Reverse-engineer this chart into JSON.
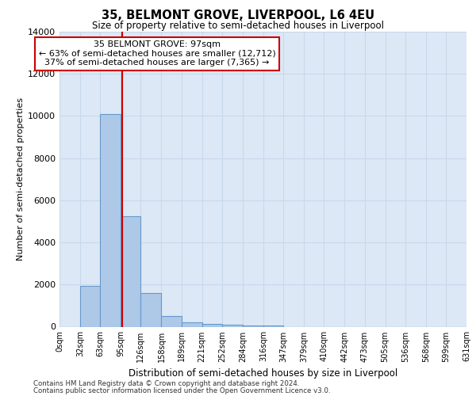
{
  "title": "35, BELMONT GROVE, LIVERPOOL, L6 4EU",
  "subtitle": "Size of property relative to semi-detached houses in Liverpool",
  "xlabel": "Distribution of semi-detached houses by size in Liverpool",
  "ylabel": "Number of semi-detached properties",
  "annotation_line1": "35 BELMONT GROVE: 97sqm",
  "annotation_line2": "← 63% of semi-detached houses are smaller (12,712)",
  "annotation_line3": "37% of semi-detached houses are larger (7,365) →",
  "footer_line1": "Contains HM Land Registry data © Crown copyright and database right 2024.",
  "footer_line2": "Contains public sector information licensed under the Open Government Licence v3.0.",
  "property_size_sqm": 97,
  "bar_edges": [
    0,
    32,
    63,
    95,
    126,
    158,
    189,
    221,
    252,
    284,
    316,
    347,
    379,
    410,
    442,
    473,
    505,
    536,
    568,
    599,
    631
  ],
  "bar_heights": [
    0,
    1950,
    10100,
    5250,
    1600,
    500,
    200,
    130,
    90,
    60,
    50,
    0,
    0,
    0,
    0,
    0,
    0,
    0,
    0,
    0
  ],
  "bar_color": "#aec8e8",
  "bar_edge_color": "#6699cc",
  "redline_color": "#cc0000",
  "annotation_box_edge": "#cc0000",
  "annotation_box_face": "#ffffff",
  "grid_color": "#c8d8ec",
  "background_color": "#dce8f5",
  "ylim": [
    0,
    14000
  ],
  "yticks": [
    0,
    2000,
    4000,
    6000,
    8000,
    10000,
    12000,
    14000
  ]
}
